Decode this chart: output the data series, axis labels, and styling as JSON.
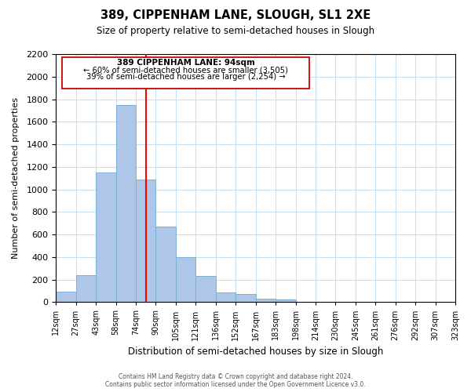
{
  "title": "389, CIPPENHAM LANE, SLOUGH, SL1 2XE",
  "subtitle": "Size of property relative to semi-detached houses in Slough",
  "xlabel": "Distribution of semi-detached houses by size in Slough",
  "ylabel": "Number of semi-detached properties",
  "footer_line1": "Contains HM Land Registry data © Crown copyright and database right 2024.",
  "footer_line2": "Contains public sector information licensed under the Open Government Licence v3.0.",
  "bin_labels": [
    "12sqm",
    "27sqm",
    "43sqm",
    "58sqm",
    "74sqm",
    "90sqm",
    "105sqm",
    "121sqm",
    "136sqm",
    "152sqm",
    "167sqm",
    "183sqm",
    "198sqm",
    "214sqm",
    "230sqm",
    "245sqm",
    "261sqm",
    "276sqm",
    "292sqm",
    "307sqm",
    "323sqm"
  ],
  "bar_values": [
    90,
    240,
    1150,
    1750,
    1090,
    670,
    400,
    230,
    85,
    70,
    30,
    20,
    0,
    0,
    0,
    0,
    0,
    0,
    0,
    0
  ],
  "bar_color": "#aec6e8",
  "bar_edge_color": "#7bafd4",
  "property_line_x": 4.5,
  "property_line_color": "red",
  "ylim": [
    0,
    2200
  ],
  "yticks": [
    0,
    200,
    400,
    600,
    800,
    1000,
    1200,
    1400,
    1600,
    1800,
    2000,
    2200
  ],
  "annotation_title": "389 CIPPENHAM LANE: 94sqm",
  "annotation_line1": "← 60% of semi-detached houses are smaller (3,505)",
  "annotation_line2": "39% of semi-detached houses are larger (2,254) →"
}
